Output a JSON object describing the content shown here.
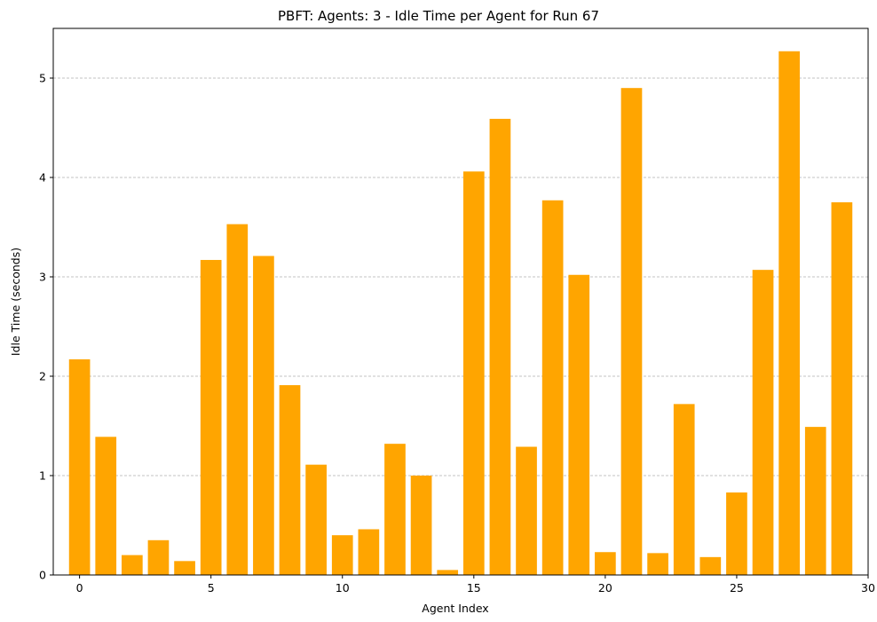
{
  "chart_data": {
    "type": "bar",
    "title": "PBFT: Agents: 3 - Idle Time per Agent for Run 67",
    "xlabel": "Agent Index",
    "ylabel": "Idle Time (seconds)",
    "x": [
      0,
      1,
      2,
      3,
      4,
      5,
      6,
      7,
      8,
      9,
      10,
      11,
      12,
      13,
      14,
      15,
      16,
      17,
      18,
      19,
      20,
      21,
      22,
      23,
      24,
      25,
      26,
      27,
      28,
      29
    ],
    "values": [
      2.17,
      1.39,
      0.2,
      0.35,
      0.14,
      3.17,
      3.53,
      3.21,
      1.91,
      1.11,
      0.4,
      0.46,
      1.32,
      1.0,
      0.05,
      4.06,
      4.59,
      1.29,
      3.77,
      3.02,
      0.23,
      4.9,
      0.22,
      1.72,
      0.18,
      0.83,
      3.07,
      5.27,
      1.49,
      3.75
    ],
    "xlim": [
      -1.0,
      30.0
    ],
    "ylim": [
      0,
      5.5
    ],
    "xticks": [
      0,
      5,
      10,
      15,
      20,
      25,
      30
    ],
    "yticks": [
      0,
      1,
      2,
      3,
      4,
      5
    ],
    "bar_color": "#FFA500",
    "grid": "y-dashed"
  }
}
